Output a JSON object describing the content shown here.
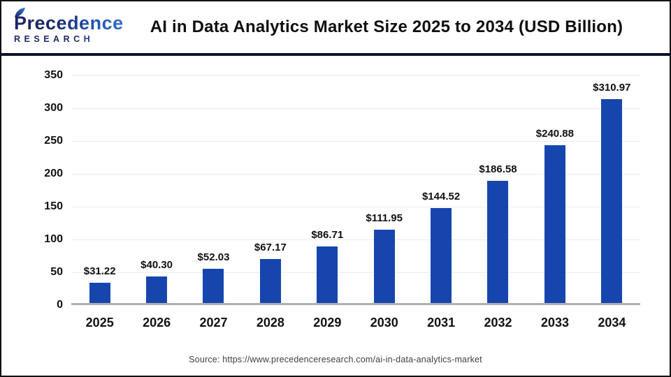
{
  "logo": {
    "name": "Precedence",
    "subtitle": "RESEARCH"
  },
  "header": {
    "title": "AI in Data Analytics Market Size 2025 to 2034 (USD Billion)"
  },
  "chart_data": {
    "type": "bar",
    "title": "AI in Data Analytics Market Size 2025 to 2034 (USD Billion)",
    "categories": [
      "2025",
      "2026",
      "2027",
      "2028",
      "2029",
      "2030",
      "2031",
      "2032",
      "2033",
      "2034"
    ],
    "values": [
      31.22,
      40.3,
      52.03,
      67.17,
      86.71,
      111.95,
      144.52,
      186.58,
      240.88,
      310.97
    ],
    "value_labels": [
      "$31.22",
      "$40.30",
      "$52.03",
      "$67.17",
      "$86.71",
      "$111.95",
      "$144.52",
      "$186.58",
      "$240.88",
      "$310.97"
    ],
    "xlabel": "",
    "ylabel": "",
    "ylim": [
      0,
      350
    ],
    "yticks": [
      0,
      50,
      100,
      150,
      200,
      250,
      300,
      350
    ],
    "grid": true,
    "legend": false,
    "bar_color": "#1646ad"
  },
  "source": {
    "text": "Source: https://www.precedenceresearch.com/ai-in-data-analytics-market"
  },
  "colors": {
    "bar_blue": "#1646ad",
    "separator_navy": "#0a0f33",
    "logo_navy": "#1b2666",
    "logo_blue": "#3579d8",
    "gridline_gray": "#ececec",
    "baseline_gray": "#b0b0b0",
    "title_black": "#0e0e0e",
    "source_gray": "#3f3f3f"
  }
}
